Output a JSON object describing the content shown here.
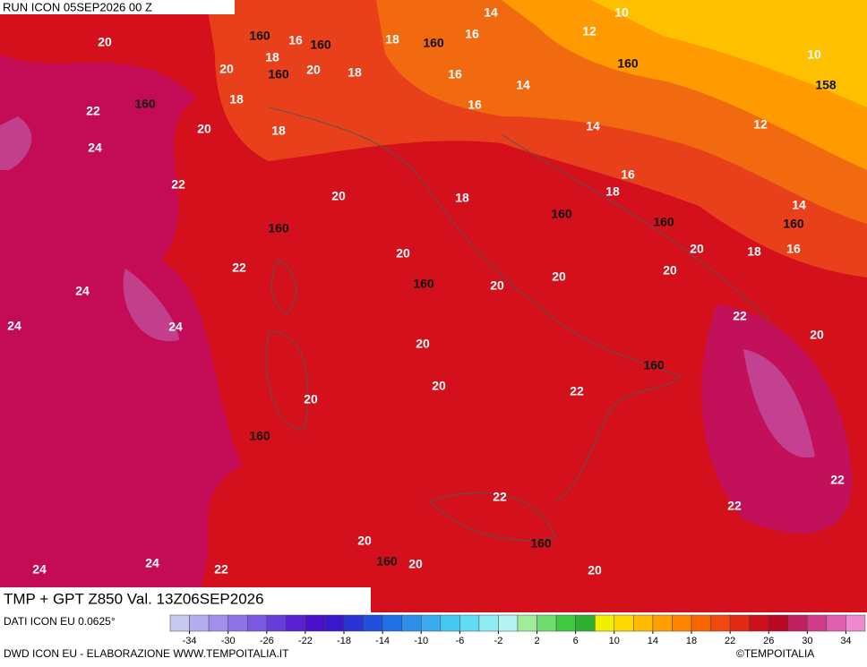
{
  "header": {
    "run": "RUN ICON 05SEP2026 00 Z"
  },
  "map": {
    "temperature_labels": [
      14,
      10,
      20,
      16,
      18,
      16,
      12,
      20,
      18,
      20,
      18,
      16,
      14,
      10,
      18,
      22,
      16,
      14,
      12,
      20,
      24,
      18,
      22,
      20,
      18,
      16,
      18,
      14,
      20,
      18,
      16,
      20,
      22,
      20,
      24,
      20,
      20,
      22,
      24,
      24,
      20,
      20,
      20,
      22,
      20,
      22,
      22,
      22,
      20,
      24,
      24,
      22,
      20,
      20
    ],
    "height_labels": [
      160,
      160,
      160,
      160,
      160,
      160,
      158,
      160,
      160,
      160,
      160,
      160,
      160,
      160,
      160,
      160
    ]
  },
  "footer": {
    "product": "TMP + GPT Z850 Val. 13Z06SEP2026",
    "source": "DATI ICON EU 0.0625°",
    "credit": "DWD ICON EU - ELABORAZIONE WWW.TEMPOITALIA.IT",
    "copyright": "©TEMPOITALIA"
  },
  "legend": {
    "lim": [
      -36,
      36
    ],
    "ticks": [
      -34,
      -30,
      -26,
      -22,
      -18,
      -14,
      -10,
      -6,
      -2,
      2,
      6,
      10,
      14,
      18,
      22,
      26,
      30,
      34
    ],
    "colors": [
      "#c8c8f0",
      "#b4aef0",
      "#a090ec",
      "#8c74e8",
      "#7a58e2",
      "#683cda",
      "#5820d0",
      "#4a10c8",
      "#3a18cc",
      "#2a34d4",
      "#2050dc",
      "#2070e4",
      "#2c90ea",
      "#38acee",
      "#44c8f2",
      "#60dcf4",
      "#90ecf4",
      "#b4f4f0",
      "#a0ec9a",
      "#70dc70",
      "#40c840",
      "#30b030",
      "#f0f000",
      "#ffd800",
      "#ffbc00",
      "#ffa000",
      "#ff8400",
      "#f86600",
      "#f04810",
      "#e02a14",
      "#cc101c",
      "#b80824",
      "#c02060",
      "#d03c88",
      "#e060b0",
      "#f088d0"
    ]
  }
}
